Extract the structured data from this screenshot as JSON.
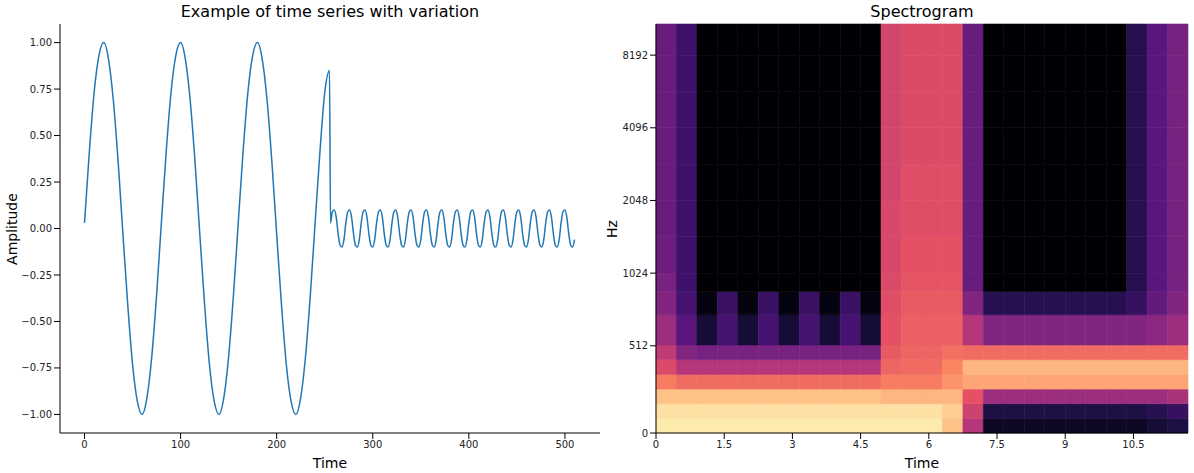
{
  "chart_data": [
    {
      "type": "line",
      "title": "Example of time series with variation",
      "x_label": "Time",
      "y_label": "Amplitude",
      "color": "#1f77b4",
      "x": [
        0,
        5,
        10,
        15,
        20,
        25,
        30,
        35,
        40,
        45,
        50,
        55,
        60,
        65,
        70,
        75,
        80,
        85,
        90,
        95,
        100,
        105,
        110,
        115,
        120,
        125,
        130,
        135,
        140,
        145,
        150,
        155,
        160,
        165,
        170,
        175,
        180,
        185,
        190,
        195,
        200,
        205,
        210,
        215,
        220,
        225,
        230,
        235,
        240,
        245,
        250,
        255,
        256,
        258,
        260,
        262,
        264,
        266,
        268,
        270,
        272,
        274,
        276,
        278,
        280,
        282,
        284,
        286,
        288,
        290,
        292,
        294,
        296,
        298,
        300,
        302,
        304,
        306,
        308,
        310,
        312,
        314,
        316,
        318,
        320,
        322,
        324,
        326,
        328,
        330,
        332,
        334,
        336,
        338,
        340,
        342,
        344,
        346,
        348,
        350,
        352,
        354,
        356,
        358,
        360,
        362,
        364,
        366,
        368,
        370,
        372,
        374,
        376,
        378,
        380,
        382,
        384,
        386,
        388,
        390,
        392,
        394,
        396,
        398,
        400,
        402,
        404,
        406,
        408,
        410,
        412,
        414,
        416,
        418,
        420,
        422,
        424,
        426,
        428,
        430,
        432,
        434,
        436,
        438,
        440,
        442,
        444,
        446,
        448,
        450,
        452,
        454,
        456,
        458,
        460,
        462,
        464,
        466,
        468,
        470,
        472,
        474,
        476,
        478,
        480,
        482,
        484,
        486,
        488,
        490,
        492,
        494,
        496,
        498,
        500,
        502,
        504,
        506,
        508,
        510
      ],
      "values": [
        0.03,
        0.41,
        0.73,
        0.93,
        1.0,
        0.91,
        0.69,
        0.36,
        -0.03,
        -0.41,
        -0.73,
        -0.93,
        -1.0,
        -0.91,
        -0.69,
        -0.36,
        0.03,
        0.41,
        0.73,
        0.93,
        1.0,
        0.91,
        0.69,
        0.36,
        -0.03,
        -0.41,
        -0.73,
        -0.93,
        -1.0,
        -0.91,
        -0.69,
        -0.36,
        0.03,
        0.41,
        0.73,
        0.93,
        1.0,
        0.91,
        0.69,
        0.36,
        -0.03,
        -0.41,
        -0.73,
        -0.93,
        -1.0,
        -0.91,
        -0.69,
        -0.36,
        0.03,
        0.41,
        0.73,
        0.85,
        0.03,
        0.09,
        0.1,
        0.06,
        -0.03,
        -0.09,
        -0.1,
        -0.06,
        0.03,
        0.09,
        0.1,
        0.06,
        -0.03,
        -0.09,
        -0.1,
        -0.06,
        0.03,
        0.09,
        0.1,
        0.06,
        -0.03,
        -0.09,
        -0.1,
        -0.06,
        0.03,
        0.09,
        0.1,
        0.06,
        -0.03,
        -0.09,
        -0.1,
        -0.06,
        0.03,
        0.09,
        0.1,
        0.06,
        -0.03,
        -0.09,
        -0.1,
        -0.06,
        0.03,
        0.09,
        0.1,
        0.06,
        -0.03,
        -0.09,
        -0.1,
        -0.06,
        0.03,
        0.09,
        0.1,
        0.06,
        -0.03,
        -0.09,
        -0.1,
        -0.06,
        0.03,
        0.09,
        0.1,
        0.06,
        -0.03,
        -0.09,
        -0.1,
        -0.06,
        0.03,
        0.09,
        0.1,
        0.06,
        -0.03,
        -0.09,
        -0.1,
        -0.06,
        0.03,
        0.09,
        0.1,
        0.06,
        -0.03,
        -0.09,
        -0.1,
        -0.06,
        0.03,
        0.09,
        0.1,
        0.06,
        -0.03,
        -0.09,
        -0.1,
        -0.06,
        0.03,
        0.09,
        0.1,
        0.06,
        -0.03,
        -0.09,
        -0.1,
        -0.06,
        0.03,
        0.09,
        0.1,
        0.06,
        -0.03,
        -0.09,
        -0.1,
        -0.06,
        0.03,
        0.09,
        0.1,
        0.06,
        -0.03,
        -0.09,
        -0.1,
        -0.06,
        0.03,
        0.09,
        0.1,
        0.06,
        -0.03,
        -0.09,
        -0.1,
        -0.06,
        0.03,
        0.09,
        0.1,
        0.06,
        -0.03,
        -0.09,
        -0.1,
        -0.06
      ],
      "xlim": [
        -25.5,
        536.5
      ],
      "xticks": [
        0,
        100,
        200,
        300,
        400,
        500
      ],
      "ylim": [
        -1.1,
        1.1
      ],
      "yticks": [
        {
          "value": -1,
          "label": "−1.00"
        },
        {
          "value": -0.75,
          "label": "−0.75"
        },
        {
          "value": -0.5,
          "label": "−0.50"
        },
        {
          "value": -0.25,
          "label": "−0.25"
        },
        {
          "value": 0,
          "label": "0.00"
        },
        {
          "value": 0.25,
          "label": "0.25"
        },
        {
          "value": 0.5,
          "label": "0.50"
        },
        {
          "value": 0.75,
          "label": "0.75"
        },
        {
          "value": 1,
          "label": "1.00"
        }
      ]
    },
    {
      "type": "heatmap",
      "title": "Spectrogram",
      "x_label": "Time",
      "y_label": "Hz",
      "log": "y",
      "x_bins": [
        0,
        0.45,
        0.9,
        1.35,
        1.8,
        2.25,
        2.7,
        3.15,
        3.6,
        4.05,
        4.5,
        4.95,
        5.4,
        5.85,
        6.3,
        6.75,
        7.2,
        7.65,
        8.1,
        8.55,
        9,
        9.45,
        9.9,
        10.35,
        10.8,
        11.25,
        11.7
      ],
      "y_bins": [
        0,
        86,
        172,
        258,
        344,
        430,
        516,
        688,
        860,
        1024,
        1448,
        2048,
        2896,
        4096,
        5793,
        8192,
        11025
      ],
      "zlim": [
        -80,
        0
      ],
      "cells": [
        [
          -3,
          -5,
          -10,
          -22,
          -32,
          -38,
          -45,
          -50,
          -52,
          -54,
          -55,
          -55,
          -55,
          -55,
          -55,
          -55
        ],
        [
          -3,
          -5,
          -10,
          -25,
          -40,
          -50,
          -58,
          -62,
          -63,
          -63,
          -63,
          -63,
          -63,
          -63,
          -63,
          -63
        ],
        [
          -3,
          -5,
          -10,
          -25,
          -40,
          -52,
          -72,
          -78,
          -80,
          -80,
          -80,
          -80,
          -80,
          -80,
          -80,
          -80
        ],
        [
          -3,
          -5,
          -10,
          -25,
          -40,
          -52,
          -62,
          -64,
          -80,
          -80,
          -80,
          -80,
          -80,
          -80,
          -80,
          -80
        ],
        [
          -3,
          -5,
          -10,
          -25,
          -40,
          -52,
          -72,
          -78,
          -80,
          -80,
          -80,
          -80,
          -80,
          -80,
          -80,
          -80
        ],
        [
          -3,
          -5,
          -10,
          -25,
          -40,
          -52,
          -62,
          -64,
          -80,
          -80,
          -80,
          -80,
          -80,
          -80,
          -80,
          -80
        ],
        [
          -3,
          -5,
          -10,
          -25,
          -40,
          -52,
          -72,
          -78,
          -80,
          -80,
          -80,
          -80,
          -80,
          -80,
          -80,
          -80
        ],
        [
          -3,
          -5,
          -10,
          -25,
          -40,
          -52,
          -62,
          -64,
          -80,
          -80,
          -80,
          -80,
          -80,
          -80,
          -80,
          -80
        ],
        [
          -3,
          -5,
          -10,
          -25,
          -40,
          -52,
          -72,
          -78,
          -80,
          -80,
          -80,
          -80,
          -80,
          -80,
          -80,
          -80
        ],
        [
          -3,
          -5,
          -10,
          -25,
          -40,
          -52,
          -62,
          -64,
          -80,
          -80,
          -80,
          -80,
          -80,
          -80,
          -80,
          -80
        ],
        [
          -3,
          -5,
          -10,
          -25,
          -40,
          -52,
          -72,
          -78,
          -80,
          -80,
          -80,
          -80,
          -80,
          -80,
          -80,
          -80
        ],
        [
          -3,
          -5,
          -12,
          -22,
          -26,
          -28,
          -30,
          -31,
          -32,
          -33,
          -33,
          -34,
          -34,
          -34,
          -34,
          -34
        ],
        [
          -3,
          -5,
          -12,
          -22,
          -25,
          -26,
          -27,
          -28,
          -29,
          -30,
          -31,
          -31,
          -32,
          -32,
          -32,
          -32
        ],
        [
          -3,
          -5,
          -12,
          -22,
          -25,
          -26,
          -27,
          -28,
          -29,
          -30,
          -31,
          -31,
          -32,
          -32,
          -32,
          -32
        ],
        [
          -10,
          -8,
          -12,
          -18,
          -20,
          -24,
          -27,
          -28,
          -29,
          -30,
          -31,
          -31,
          -32,
          -32,
          -32,
          -32
        ],
        [
          -40,
          -35,
          -30,
          -15,
          -12,
          -25,
          -40,
          -50,
          -55,
          -55,
          -55,
          -55,
          -55,
          -55,
          -55,
          -55
        ],
        [
          -75,
          -70,
          -45,
          -15,
          -12,
          -25,
          -50,
          -68,
          -80,
          -80,
          -80,
          -80,
          -80,
          -80,
          -80,
          -80
        ],
        [
          -75,
          -70,
          -45,
          -15,
          -12,
          -25,
          -50,
          -68,
          -80,
          -80,
          -80,
          -80,
          -80,
          -80,
          -80,
          -80
        ],
        [
          -75,
          -70,
          -45,
          -15,
          -12,
          -25,
          -50,
          -68,
          -80,
          -80,
          -80,
          -80,
          -80,
          -80,
          -80,
          -80
        ],
        [
          -75,
          -70,
          -45,
          -15,
          -12,
          -25,
          -50,
          -68,
          -80,
          -80,
          -80,
          -80,
          -80,
          -80,
          -80,
          -80
        ],
        [
          -75,
          -70,
          -45,
          -15,
          -12,
          -25,
          -50,
          -68,
          -80,
          -80,
          -80,
          -80,
          -80,
          -80,
          -80,
          -80
        ],
        [
          -75,
          -70,
          -45,
          -15,
          -12,
          -25,
          -50,
          -68,
          -80,
          -80,
          -80,
          -80,
          -80,
          -80,
          -80,
          -80
        ],
        [
          -75,
          -70,
          -45,
          -15,
          -12,
          -25,
          -50,
          -68,
          -80,
          -80,
          -80,
          -80,
          -80,
          -80,
          -80,
          -80
        ],
        [
          -75,
          -70,
          -45,
          -15,
          -12,
          -25,
          -50,
          -65,
          -68,
          -68,
          -68,
          -68,
          -68,
          -68,
          -68,
          -68
        ],
        [
          -72,
          -68,
          -45,
          -15,
          -12,
          -25,
          -48,
          -56,
          -58,
          -58,
          -58,
          -58,
          -58,
          -58,
          -58,
          -58
        ],
        [
          -70,
          -65,
          -42,
          -15,
          -12,
          -25,
          -45,
          -50,
          -52,
          -52,
          -52,
          -52,
          -52,
          -52,
          -52,
          -52
        ]
      ],
      "xlim": [
        0,
        11.7
      ],
      "xticks": [
        0,
        1.5,
        3,
        4.5,
        6,
        7.5,
        9,
        10.5
      ],
      "ylim": [
        0,
        11025
      ],
      "yticks": [
        0,
        512,
        1024,
        2048,
        4096,
        8192
      ]
    }
  ]
}
